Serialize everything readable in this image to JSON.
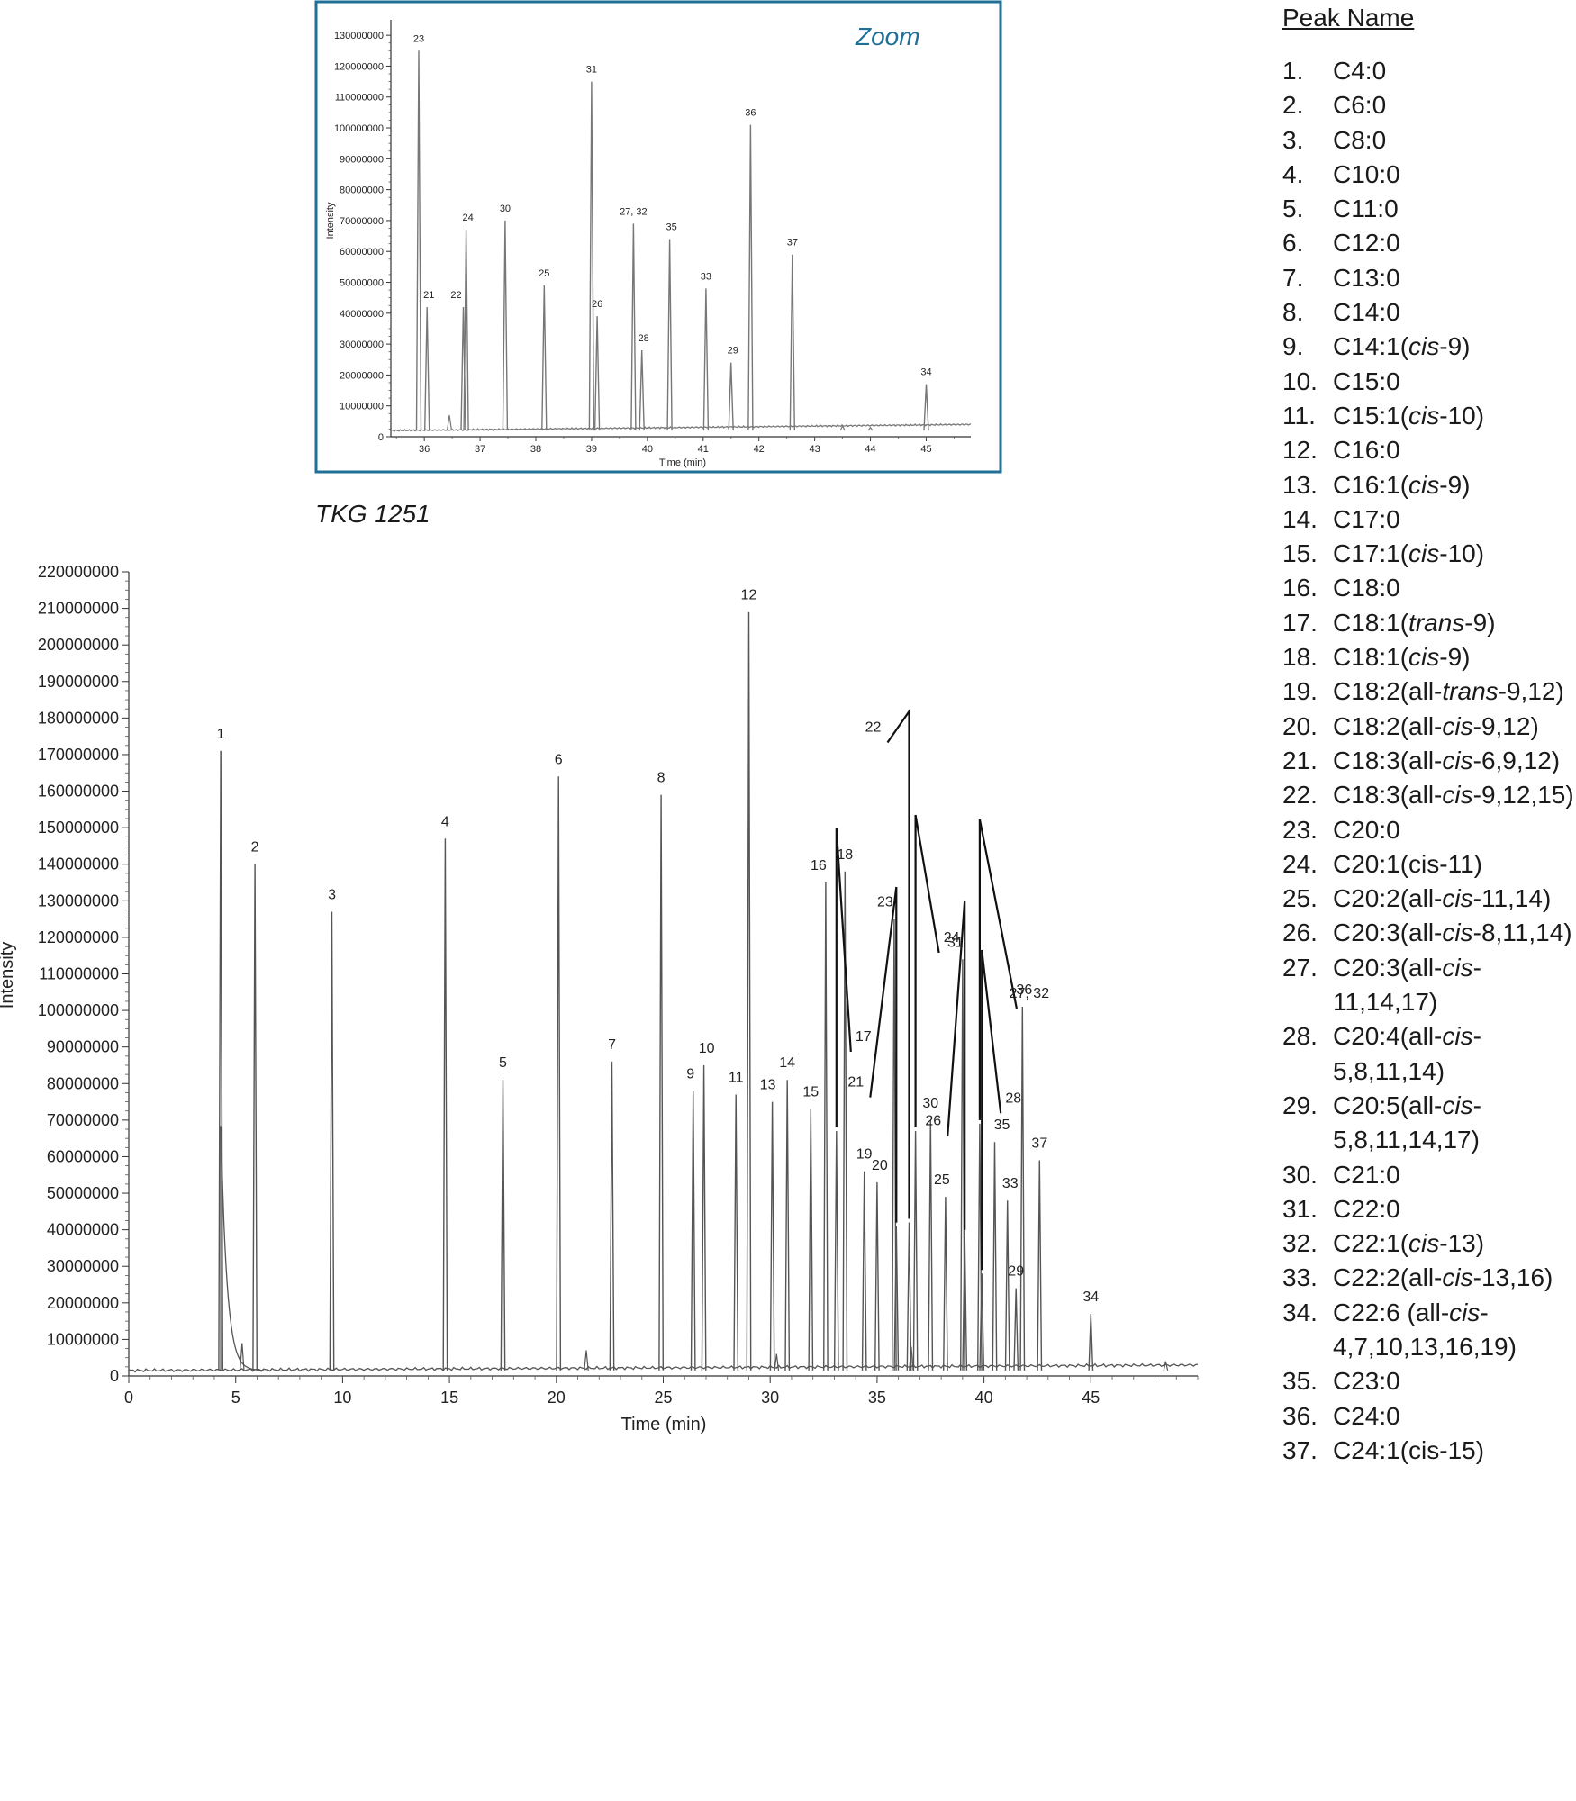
{
  "chart_data": [
    {
      "type": "line",
      "title": "TKG 1251",
      "xlabel": "Time (min)",
      "ylabel": "Intensity",
      "xlim": [
        0,
        50
      ],
      "ylim": [
        0,
        220000000
      ],
      "xticks": [
        0,
        5,
        10,
        15,
        20,
        25,
        30,
        35,
        40,
        45
      ],
      "xtick_labels": [
        "0",
        "5",
        "10",
        "15",
        "20",
        "25",
        "30",
        "35",
        "40",
        "45"
      ],
      "yticks": [
        0,
        10000000,
        20000000,
        30000000,
        40000000,
        50000000,
        60000000,
        70000000,
        80000000,
        90000000,
        100000000,
        110000000,
        120000000,
        130000000,
        140000000,
        150000000,
        160000000,
        170000000,
        180000000,
        190000000,
        200000000,
        210000000,
        220000000
      ],
      "ytick_labels": [
        "0",
        "10000000",
        "20000000",
        "30000000",
        "40000000",
        "50000000",
        "60000000",
        "70000000",
        "80000000",
        "90000000",
        "100000000",
        "110000000",
        "120000000",
        "130000000",
        "140000000",
        "150000000",
        "160000000",
        "170000000",
        "180000000",
        "190000000",
        "200000000",
        "210000000",
        "220000000"
      ],
      "grid": false,
      "baseline": 1500000,
      "line_color": "#555555",
      "peaks": [
        {
          "label": "1",
          "x": 4.3,
          "y": 171000000
        },
        {
          "label": "2",
          "x": 5.9,
          "y": 140000000
        },
        {
          "label": "3",
          "x": 9.5,
          "y": 127000000
        },
        {
          "label": "4",
          "x": 14.8,
          "y": 147000000
        },
        {
          "label": "5",
          "x": 17.5,
          "y": 81000000
        },
        {
          "label": "6",
          "x": 20.1,
          "y": 164000000
        },
        {
          "label": "7",
          "x": 22.6,
          "y": 86000000
        },
        {
          "label": "8",
          "x": 24.9,
          "y": 159000000
        },
        {
          "label": "9",
          "x": 26.4,
          "y": 78000000
        },
        {
          "label": "10",
          "x": 26.9,
          "y": 85000000
        },
        {
          "label": "11",
          "x": 28.4,
          "y": 77000000
        },
        {
          "label": "12",
          "x": 29.0,
          "y": 209000000
        },
        {
          "label": "13",
          "x": 30.1,
          "y": 75000000
        },
        {
          "label": "14",
          "x": 30.8,
          "y": 81000000
        },
        {
          "label": "15",
          "x": 31.9,
          "y": 73000000
        },
        {
          "label": "16",
          "x": 32.6,
          "y": 135000000
        },
        {
          "label": "17",
          "x": 33.1,
          "y": 67000000
        },
        {
          "label": "18",
          "x": 33.5,
          "y": 138000000
        },
        {
          "label": "19",
          "x": 34.4,
          "y": 56000000
        },
        {
          "label": "20",
          "x": 35.0,
          "y": 53000000
        },
        {
          "label": "21",
          "x": 35.9,
          "y": 41000000
        },
        {
          "label": "22",
          "x": 36.5,
          "y": 42000000
        },
        {
          "label": "23",
          "x": 35.8,
          "y": 125000000
        },
        {
          "label": "24",
          "x": 36.8,
          "y": 67000000
        },
        {
          "label": "25",
          "x": 38.2,
          "y": 49000000
        },
        {
          "label": "26",
          "x": 39.1,
          "y": 39000000
        },
        {
          "label": "27, 32",
          "x": 39.8,
          "y": 69000000
        },
        {
          "label": "28",
          "x": 39.9,
          "y": 28000000
        },
        {
          "label": "29",
          "x": 41.5,
          "y": 24000000
        },
        {
          "label": "30",
          "x": 37.5,
          "y": 70000000
        },
        {
          "label": "31",
          "x": 39.0,
          "y": 114000000
        },
        {
          "label": "33",
          "x": 41.1,
          "y": 48000000
        },
        {
          "label": "34",
          "x": 45.0,
          "y": 17000000
        },
        {
          "label": "35",
          "x": 40.5,
          "y": 64000000
        },
        {
          "label": "36",
          "x": 41.8,
          "y": 101000000
        },
        {
          "label": "37",
          "x": 42.6,
          "y": 59000000
        }
      ],
      "minor_peaks": [
        {
          "x": 5.3,
          "y": 9000000
        },
        {
          "x": 21.4,
          "y": 7000000
        },
        {
          "x": 30.3,
          "y": 6000000
        },
        {
          "x": 36.6,
          "y": 8000000
        },
        {
          "x": 48.5,
          "y": 4000000
        }
      ]
    },
    {
      "type": "line",
      "title": "Zoom",
      "xlabel": "Time (min)",
      "ylabel": "Intensity",
      "xlim": [
        35.4,
        45.8
      ],
      "ylim": [
        0,
        135000000
      ],
      "xticks": [
        36,
        37,
        38,
        39,
        40,
        41,
        42,
        43,
        44,
        45
      ],
      "xtick_labels": [
        "36",
        "37",
        "38",
        "39",
        "40",
        "41",
        "42",
        "43",
        "44",
        "45"
      ],
      "yticks": [
        0,
        10000000,
        20000000,
        30000000,
        40000000,
        50000000,
        60000000,
        70000000,
        80000000,
        90000000,
        100000000,
        110000000,
        120000000,
        130000000
      ],
      "ytick_labels": [
        "0",
        "10000000",
        "20000000",
        "30000000",
        "40000000",
        "50000000",
        "60000000",
        "70000000",
        "80000000",
        "90000000",
        "100000000",
        "110000000",
        "120000000",
        "130000000"
      ],
      "grid": false,
      "baseline": 2000000,
      "border_color": "#1f6f96",
      "line_color": "#777777",
      "peaks": [
        {
          "label": "23",
          "x": 35.9,
          "y": 125000000
        },
        {
          "label": "21",
          "x": 36.05,
          "y": 42000000
        },
        {
          "label": "22",
          "x": 36.7,
          "y": 42000000
        },
        {
          "label": "24",
          "x": 36.75,
          "y": 67000000
        },
        {
          "label": "30",
          "x": 37.45,
          "y": 70000000
        },
        {
          "label": "25",
          "x": 38.15,
          "y": 49000000
        },
        {
          "label": "31",
          "x": 39.0,
          "y": 115000000
        },
        {
          "label": "26",
          "x": 39.1,
          "y": 39000000
        },
        {
          "label": "27, 32",
          "x": 39.75,
          "y": 69000000
        },
        {
          "label": "28",
          "x": 39.9,
          "y": 28000000
        },
        {
          "label": "35",
          "x": 40.4,
          "y": 64000000
        },
        {
          "label": "33",
          "x": 41.05,
          "y": 48000000
        },
        {
          "label": "29",
          "x": 41.5,
          "y": 24000000
        },
        {
          "label": "36",
          "x": 41.85,
          "y": 101000000
        },
        {
          "label": "37",
          "x": 42.6,
          "y": 59000000
        },
        {
          "label": "34",
          "x": 45.0,
          "y": 17000000
        }
      ],
      "minor_peaks": [
        {
          "x": 36.45,
          "y": 7000000
        },
        {
          "x": 43.5,
          "y": 3500000
        },
        {
          "x": 44.0,
          "y": 3000000
        }
      ]
    }
  ],
  "legend": {
    "title": "Peak Name",
    "items": [
      {
        "num": "1.",
        "name": "C4:0"
      },
      {
        "num": "2.",
        "name": "C6:0"
      },
      {
        "num": "3.",
        "name": "C8:0"
      },
      {
        "num": "4.",
        "name": "C10:0"
      },
      {
        "num": "5.",
        "name": "C11:0"
      },
      {
        "num": "6.",
        "name": "C12:0"
      },
      {
        "num": "7.",
        "name": "C13:0"
      },
      {
        "num": "8.",
        "name": "C14:0"
      },
      {
        "num": "9.",
        "name": "C14:1(cis-9)"
      },
      {
        "num": "10.",
        "name": "C15:0"
      },
      {
        "num": "11.",
        "name": "C15:1(cis-10)"
      },
      {
        "num": "12.",
        "name": "C16:0"
      },
      {
        "num": "13.",
        "name": "C16:1(cis-9)"
      },
      {
        "num": "14.",
        "name": "C17:0"
      },
      {
        "num": "15.",
        "name": "C17:1(cis-10)"
      },
      {
        "num": "16.",
        "name": "C18:0"
      },
      {
        "num": "17.",
        "name": "C18:1(trans-9)"
      },
      {
        "num": "18.",
        "name": "C18:1(cis-9)"
      },
      {
        "num": "19.",
        "name": "C18:2(all-trans-9,12)"
      },
      {
        "num": "20.",
        "name": "C18:2(all-cis-9,12)"
      },
      {
        "num": "21.",
        "name": "C18:3(all-cis-6,9,12)"
      },
      {
        "num": "22.",
        "name": "C18:3(all-cis-9,12,15)"
      },
      {
        "num": "23.",
        "name": "C20:0"
      },
      {
        "num": "24.",
        "name": "C20:1(cis-11)"
      },
      {
        "num": "25.",
        "name": "C20:2(all-cis-11,14)"
      },
      {
        "num": "26.",
        "name": "C20:3(all-cis-8,11,14)"
      },
      {
        "num": "27.",
        "name": "C20:3(all-cis-11,14,17)"
      },
      {
        "num": "28.",
        "name": "C20:4(all-cis-5,8,11,14)"
      },
      {
        "num": "29.",
        "name": "C20:5(all-cis-5,8,11,14,17)"
      },
      {
        "num": "30.",
        "name": "C21:0"
      },
      {
        "num": "31.",
        "name": "C22:0"
      },
      {
        "num": "32.",
        "name": "C22:1(cis-13)"
      },
      {
        "num": "33.",
        "name": "C22:2(all-cis-13,16)"
      },
      {
        "num": "34.",
        "name": "C22:6 (all-cis-4,7,10,13,16,19)"
      },
      {
        "num": "35.",
        "name": "C23:0"
      },
      {
        "num": "36.",
        "name": "C24:0"
      },
      {
        "num": "37.",
        "name": "C24:1(cis-15)"
      }
    ]
  }
}
